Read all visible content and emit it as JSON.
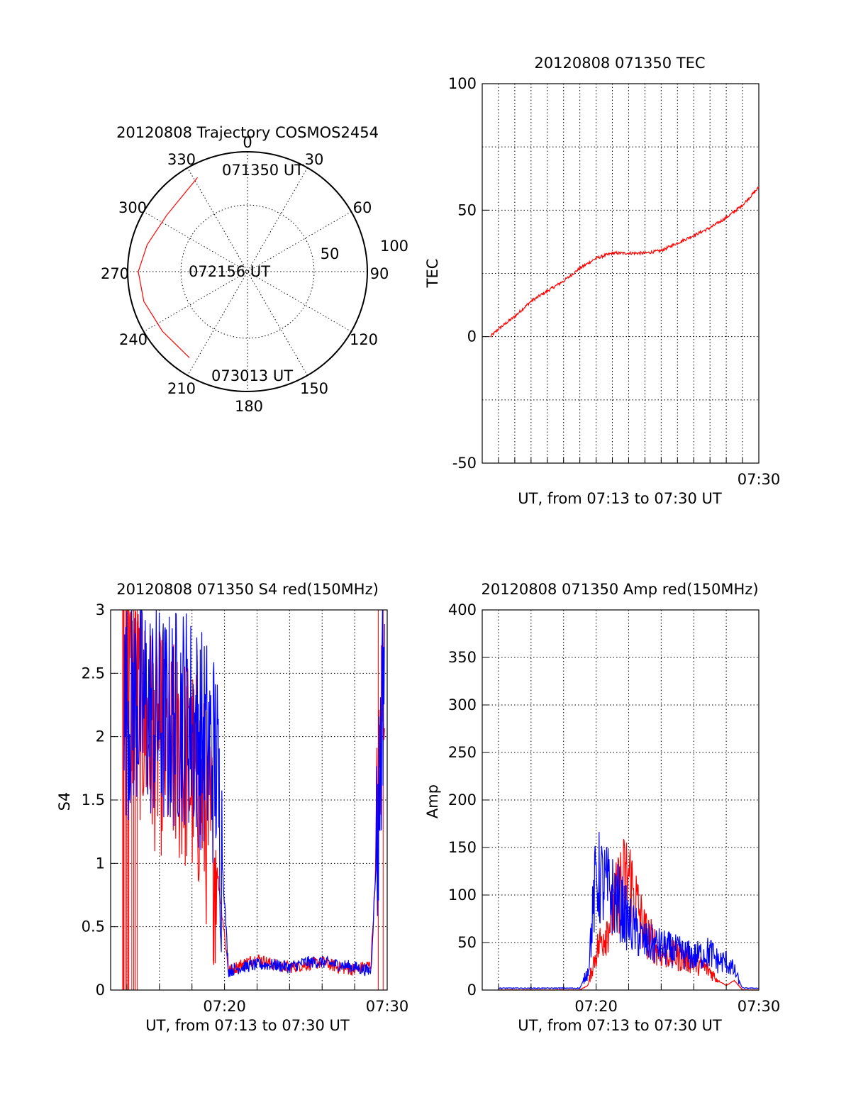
{
  "colors": {
    "red": "#ff0000",
    "blue": "#0000ff",
    "axis": "#000000",
    "background": "#ffffff"
  },
  "chart_data": [
    {
      "type": "polar",
      "id": "trajectory",
      "title": "20120808 Trajectory COSMOS2454",
      "azimuth_labels": [
        "0",
        "30",
        "60",
        "90",
        "120",
        "150",
        "180",
        "210",
        "240",
        "270",
        "300",
        "330"
      ],
      "radial_labels": [
        "50",
        "100"
      ],
      "r_range": [
        0,
        90
      ],
      "grid": true,
      "series": [
        {
          "color": "#ff0000",
          "points": [
            {
              "az": 332,
              "r": 80
            },
            {
              "az": 305,
              "r": 74
            },
            {
              "az": 285,
              "r": 78
            },
            {
              "az": 270,
              "r": 82
            },
            {
              "az": 254,
              "r": 81
            },
            {
              "az": 235,
              "r": 78
            },
            {
              "az": 214,
              "r": 78
            }
          ]
        }
      ],
      "annotations": [
        "071350 UT",
        "072156 UT",
        "073013 UT"
      ]
    },
    {
      "type": "line",
      "id": "tec",
      "title": "20120808 071350 TEC",
      "xlabel": "UT, from 07:13 to 07:30 UT",
      "ylabel": "TEC",
      "xlim": [
        "07:13",
        "07:30"
      ],
      "ylim": [
        -50,
        100
      ],
      "xticks": [
        "07:30"
      ],
      "yticks": [
        -50,
        0,
        50,
        100
      ],
      "grid": true,
      "series": [
        {
          "color": "#ff0000",
          "x": [
            "07:13:30",
            "07:14",
            "07:15",
            "07:16",
            "07:17",
            "07:18",
            "07:19",
            "07:20",
            "07:21",
            "07:22",
            "07:23",
            "07:24",
            "07:25",
            "07:26",
            "07:27",
            "07:28",
            "07:29",
            "07:30"
          ],
          "y": [
            0,
            3,
            8,
            14,
            18,
            22,
            27,
            31,
            33,
            33,
            33,
            34,
            37,
            40,
            43,
            47,
            52,
            59
          ]
        }
      ]
    },
    {
      "type": "line",
      "id": "s4",
      "title": "20120808 071350 S4 red(150MHz)",
      "xlabel": "UT, from 07:13 to 07:30 UT",
      "ylabel": "S4",
      "xlim": [
        "07:13",
        "07:30"
      ],
      "ylim": [
        0,
        3
      ],
      "xticks": [
        "07:20",
        "07:30"
      ],
      "yticks": [
        "0",
        "0.5",
        "1",
        "1.5",
        "2",
        "2.5",
        "3"
      ],
      "grid": true,
      "series": [
        {
          "color": "#ff0000",
          "x": [
            "07:13:50",
            "07:14:30",
            "07:15:30",
            "07:16:30",
            "07:17:30",
            "07:18:30",
            "07:19",
            "07:19:30",
            "07:20:15",
            "07:21",
            "07:22",
            "07:23",
            "07:24",
            "07:25",
            "07:26",
            "07:27",
            "07:28",
            "07:29",
            "07:29:30",
            "07:29:50"
          ],
          "y": [
            2.5,
            2.3,
            2.0,
            1.9,
            1.8,
            1.6,
            1.3,
            1.0,
            0.15,
            0.2,
            0.25,
            0.2,
            0.18,
            0.2,
            0.22,
            0.18,
            0.16,
            0.2,
            1.5,
            2.8
          ]
        },
        {
          "color": "#0000ff",
          "x": [
            "07:13:50",
            "07:14:30",
            "07:15:30",
            "07:16:30",
            "07:17:30",
            "07:18:30",
            "07:19",
            "07:19:30",
            "07:20:15",
            "07:21",
            "07:22",
            "07:23",
            "07:24",
            "07:25",
            "07:26",
            "07:27",
            "07:28",
            "07:29",
            "07:29:30",
            "07:29:50"
          ],
          "y": [
            2.2,
            2.3,
            2.2,
            2.1,
            2.2,
            2.0,
            1.9,
            1.8,
            0.15,
            0.18,
            0.2,
            0.2,
            0.18,
            0.22,
            0.22,
            0.2,
            0.18,
            0.15,
            1.5,
            2.8
          ]
        }
      ]
    },
    {
      "type": "line",
      "id": "amp",
      "title": "20120808 071350 Amp red(150MHz)",
      "xlabel": "UT, from 07:13 to 07:30 UT",
      "ylabel": "Amp",
      "xlim": [
        "07:13",
        "07:30"
      ],
      "ylim": [
        0,
        400
      ],
      "xticks": [
        "07:20",
        "07:30"
      ],
      "yticks": [
        0,
        50,
        100,
        150,
        200,
        250,
        300,
        350,
        400
      ],
      "grid": true,
      "series": [
        {
          "color": "#ff0000",
          "x": [
            "07:14",
            "07:18",
            "07:19",
            "07:19:30",
            "07:20",
            "07:20:30",
            "07:21",
            "07:21:30",
            "07:22",
            "07:22:30",
            "07:23",
            "07:24",
            "07:25",
            "07:26",
            "07:27",
            "07:27:30",
            "07:28",
            "07:28:30",
            "07:29",
            "07:30"
          ],
          "y": [
            0,
            0,
            0,
            5,
            40,
            60,
            80,
            110,
            120,
            90,
            60,
            40,
            35,
            30,
            20,
            10,
            5,
            10,
            0,
            0
          ]
        },
        {
          "color": "#0000ff",
          "x": [
            "07:14",
            "07:18",
            "07:19",
            "07:19:30",
            "07:20",
            "07:20:30",
            "07:21",
            "07:21:30",
            "07:22",
            "07:22:30",
            "07:23",
            "07:24",
            "07:25",
            "07:26",
            "07:27",
            "07:27:30",
            "07:28",
            "07:28:30",
            "07:29",
            "07:30"
          ],
          "y": [
            2,
            2,
            2,
            20,
            120,
            110,
            100,
            90,
            70,
            60,
            50,
            45,
            40,
            35,
            40,
            30,
            30,
            20,
            2,
            2
          ]
        }
      ]
    }
  ]
}
